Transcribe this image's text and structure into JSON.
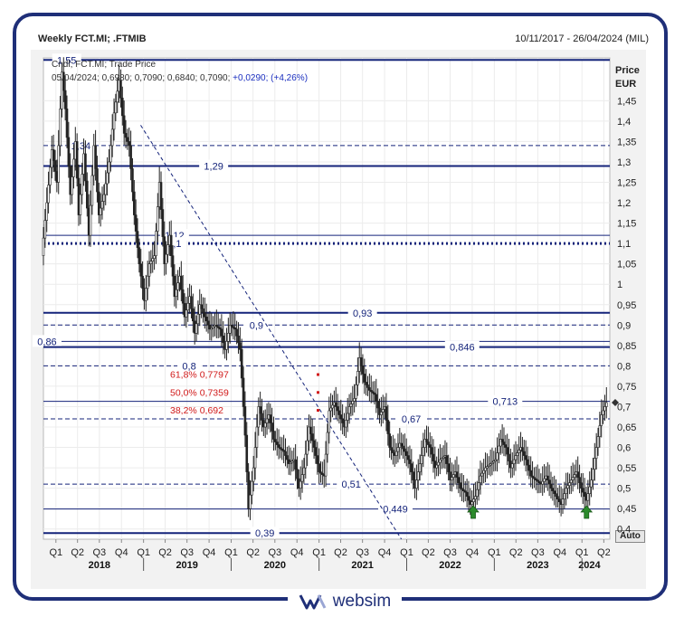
{
  "header": {
    "title": "Weekly FCT.MI; .FTMIB",
    "date_range": "10/11/2017 - 26/04/2024 (MIL)"
  },
  "info": {
    "line1": "Cndl; FCT.MI; Trade Price",
    "line2_prefix": "05/04/2024; 0,6980; 0,7090; 0,6840; 0,7090;",
    "line2_change": " +0,0290; (+4,26%)"
  },
  "axis": {
    "y_title": "Price",
    "y_unit": "EUR",
    "auto_label": "Auto"
  },
  "brand": {
    "name": "websim"
  },
  "chart_data": {
    "type": "candlestick",
    "ylim": [
      0.375,
      1.555
    ],
    "x_range": [
      "2017-11-10",
      "2024-04-26"
    ],
    "y_ticks": [
      "0,4",
      "0,45",
      "0,5",
      "0,55",
      "0,6",
      "0,65",
      "0,7",
      "0,75",
      "0,8",
      "0,85",
      "0,9",
      "0,95",
      "1",
      "1,05",
      "1,1",
      "1,15",
      "1,2",
      "1,25",
      "1,3",
      "1,35",
      "1,4",
      "1,45"
    ],
    "y_tick_values": [
      0.4,
      0.45,
      0.5,
      0.55,
      0.6,
      0.65,
      0.7,
      0.75,
      0.8,
      0.85,
      0.9,
      0.95,
      1.0,
      1.05,
      1.1,
      1.15,
      1.2,
      1.25,
      1.3,
      1.35,
      1.4,
      1.45
    ],
    "last_value_label": "0,7",
    "quarters": [
      {
        "label": "Q1",
        "date": "2018-01-01"
      },
      {
        "label": "Q2",
        "date": "2018-04-01"
      },
      {
        "label": "Q3",
        "date": "2018-07-01"
      },
      {
        "label": "Q4",
        "date": "2018-10-01"
      },
      {
        "label": "Q1",
        "date": "2019-01-01"
      },
      {
        "label": "Q2",
        "date": "2019-04-01"
      },
      {
        "label": "Q3",
        "date": "2019-07-01"
      },
      {
        "label": "Q4",
        "date": "2019-10-01"
      },
      {
        "label": "Q1",
        "date": "2020-01-01"
      },
      {
        "label": "Q2",
        "date": "2020-04-01"
      },
      {
        "label": "Q3",
        "date": "2020-07-01"
      },
      {
        "label": "Q4",
        "date": "2020-10-01"
      },
      {
        "label": "Q1",
        "date": "2021-01-01"
      },
      {
        "label": "Q2",
        "date": "2021-04-01"
      },
      {
        "label": "Q3",
        "date": "2021-07-01"
      },
      {
        "label": "Q4",
        "date": "2021-10-01"
      },
      {
        "label": "Q1",
        "date": "2022-01-01"
      },
      {
        "label": "Q2",
        "date": "2022-04-01"
      },
      {
        "label": "Q3",
        "date": "2022-07-01"
      },
      {
        "label": "Q4",
        "date": "2022-10-01"
      },
      {
        "label": "Q1",
        "date": "2023-01-01"
      },
      {
        "label": "Q2",
        "date": "2023-04-01"
      },
      {
        "label": "Q3",
        "date": "2023-07-01"
      },
      {
        "label": "Q4",
        "date": "2023-10-01"
      },
      {
        "label": "Q1",
        "date": "2024-01-01"
      },
      {
        "label": "Q2",
        "date": "2024-04-01"
      }
    ],
    "years": [
      {
        "label": "2018",
        "date": "2018-07-01"
      },
      {
        "label": "2019",
        "date": "2019-07-01"
      },
      {
        "label": "2020",
        "date": "2020-07-01"
      },
      {
        "label": "2021",
        "date": "2021-07-01"
      },
      {
        "label": "2022",
        "date": "2022-07-01"
      },
      {
        "label": "2023",
        "date": "2023-07-01"
      },
      {
        "label": "2024",
        "date": "2024-02-01"
      }
    ],
    "hlines": [
      {
        "value": 1.55,
        "label": "1,55",
        "style": "solid",
        "label_date": "2018-02-15"
      },
      {
        "value": 1.34,
        "label": "1,34",
        "style": "dashed",
        "label_date": "2018-04-15"
      },
      {
        "value": 1.29,
        "label": "1,29",
        "style": "solid",
        "label_date": "2019-10-20"
      },
      {
        "value": 1.12,
        "label": "1,12",
        "style": "thin",
        "label_date": "2019-05-10"
      },
      {
        "value": 1.1,
        "label": "1,1",
        "style": "dotted",
        "label_date": "2019-05-10"
      },
      {
        "value": 0.93,
        "label": "0,93",
        "style": "solid",
        "label_date": "2021-07-01"
      },
      {
        "value": 0.9,
        "label": "0,9",
        "style": "dashed",
        "label_date": "2020-04-15"
      },
      {
        "value": 0.86,
        "label": "0,86",
        "style": "thin",
        "label_date": "2017-11-25"
      },
      {
        "value": 0.846,
        "label": "0,846",
        "style": "solid",
        "label_date": "2022-08-20"
      },
      {
        "value": 0.8,
        "label": "0,8",
        "style": "dashed",
        "label_date": "2019-07-10"
      },
      {
        "value": 0.713,
        "label": "0,713",
        "style": "thin",
        "label_date": "2023-02-15"
      },
      {
        "value": 0.67,
        "label": "0,67",
        "style": "dashed",
        "label_date": "2022-01-20"
      },
      {
        "value": 0.51,
        "label": "0,51",
        "style": "dashed",
        "label_date": "2021-05-15"
      },
      {
        "value": 0.449,
        "label": "0,449",
        "style": "thin",
        "label_date": "2021-11-15"
      },
      {
        "value": 0.39,
        "label": "0,39",
        "style": "solid",
        "label_date": "2020-05-20"
      }
    ],
    "fib_levels": [
      {
        "label": "61,8%  0,7797",
        "value": 0.7797
      },
      {
        "label": "50,0%  0,7359",
        "value": 0.7359
      },
      {
        "label": "38,2%  0,692",
        "value": 0.692
      }
    ],
    "trendline": [
      {
        "date": "2018-12-20",
        "value": 1.39
      },
      {
        "date": "2021-12-10",
        "value": 0.375
      }
    ],
    "arrows": [
      {
        "date": "2022-10-05",
        "value": 0.455
      },
      {
        "date": "2024-01-20",
        "value": 0.455
      }
    ],
    "series": [
      {
        "values": [
          [
            [
              "2017-11-10",
              1.07
            ],
            [
              "2017-12-01",
              1.2
            ],
            [
              "2017-12-22",
              1.33
            ],
            [
              "2018-01-12",
              1.25
            ],
            [
              "2018-02-02",
              1.52
            ],
            [
              "2018-02-16",
              1.43
            ],
            [
              "2018-03-09",
              1.22
            ],
            [
              "2018-03-30",
              1.35
            ],
            [
              "2018-04-13",
              1.17
            ],
            [
              "2018-05-04",
              1.32
            ],
            [
              "2018-05-25",
              1.12
            ],
            [
              "2018-06-15",
              1.34
            ],
            [
              "2018-07-06",
              1.17
            ],
            [
              "2018-07-27",
              1.22
            ],
            [
              "2018-08-17",
              1.3
            ],
            [
              "2018-09-07",
              1.42
            ],
            [
              "2018-09-28",
              1.5
            ],
            [
              "2018-10-19",
              1.37
            ],
            [
              "2018-11-09",
              1.34
            ],
            [
              "2018-11-30",
              1.17
            ],
            [
              "2018-12-21",
              1.05
            ],
            [
              "2019-01-11",
              0.96
            ],
            [
              "2019-02-01",
              1.05
            ],
            [
              "2019-02-22",
              1.07
            ],
            [
              "2019-03-15",
              1.25
            ],
            [
              "2019-04-05",
              1.05
            ],
            [
              "2019-04-26",
              1.12
            ],
            [
              "2019-05-17",
              0.97
            ],
            [
              "2019-06-07",
              1.02
            ],
            [
              "2019-06-28",
              0.92
            ],
            [
              "2019-07-19",
              0.97
            ],
            [
              "2019-08-09",
              0.88
            ],
            [
              "2019-08-30",
              0.95
            ],
            [
              "2019-09-20",
              0.92
            ],
            [
              "2019-10-11",
              0.89
            ],
            [
              "2019-11-01",
              0.9
            ],
            [
              "2019-11-22",
              0.89
            ],
            [
              "2019-12-13",
              0.84
            ],
            [
              "2020-01-03",
              0.9
            ],
            [
              "2020-01-24",
              0.89
            ],
            [
              "2020-02-14",
              0.84
            ],
            [
              "2020-03-06",
              0.63
            ],
            [
              "2020-03-20",
              0.45
            ],
            [
              "2020-04-10",
              0.55
            ],
            [
              "2020-05-01",
              0.7
            ],
            [
              "2020-05-22",
              0.65
            ],
            [
              "2020-06-12",
              0.68
            ],
            [
              "2020-07-03",
              0.62
            ],
            [
              "2020-07-24",
              0.6
            ],
            [
              "2020-08-14",
              0.59
            ],
            [
              "2020-09-04",
              0.56
            ],
            [
              "2020-09-25",
              0.57
            ],
            [
              "2020-10-16",
              0.5
            ],
            [
              "2020-11-06",
              0.55
            ],
            [
              "2020-11-27",
              0.65
            ],
            [
              "2020-12-18",
              0.6
            ],
            [
              "2021-01-08",
              0.54
            ],
            [
              "2021-01-29",
              0.53
            ],
            [
              "2021-02-19",
              0.69
            ],
            [
              "2021-03-12",
              0.71
            ],
            [
              "2021-04-02",
              0.68
            ],
            [
              "2021-04-23",
              0.65
            ],
            [
              "2021-05-14",
              0.7
            ],
            [
              "2021-06-04",
              0.72
            ],
            [
              "2021-06-25",
              0.82
            ],
            [
              "2021-07-16",
              0.76
            ],
            [
              "2021-08-06",
              0.74
            ],
            [
              "2021-08-27",
              0.73
            ],
            [
              "2021-09-17",
              0.68
            ],
            [
              "2021-10-08",
              0.7
            ],
            [
              "2021-10-29",
              0.6
            ],
            [
              "2021-11-19",
              0.58
            ],
            [
              "2021-12-10",
              0.61
            ],
            [
              "2021-12-31",
              0.59
            ],
            [
              "2022-01-21",
              0.56
            ],
            [
              "2022-02-11",
              0.5
            ],
            [
              "2022-03-04",
              0.56
            ],
            [
              "2022-03-25",
              0.62
            ],
            [
              "2022-04-15",
              0.6
            ],
            [
              "2022-05-06",
              0.55
            ],
            [
              "2022-05-27",
              0.57
            ],
            [
              "2022-06-17",
              0.58
            ],
            [
              "2022-07-08",
              0.52
            ],
            [
              "2022-07-29",
              0.54
            ],
            [
              "2022-08-19",
              0.5
            ],
            [
              "2022-09-09",
              0.49
            ],
            [
              "2022-09-30",
              0.46
            ],
            [
              "2022-10-21",
              0.48
            ],
            [
              "2022-11-11",
              0.53
            ],
            [
              "2022-12-02",
              0.55
            ],
            [
              "2022-12-23",
              0.56
            ],
            [
              "2023-01-13",
              0.57
            ],
            [
              "2023-02-03",
              0.62
            ],
            [
              "2023-02-24",
              0.6
            ],
            [
              "2023-03-17",
              0.55
            ],
            [
              "2023-04-07",
              0.58
            ],
            [
              "2023-04-28",
              0.6
            ],
            [
              "2023-05-19",
              0.57
            ],
            [
              "2023-06-09",
              0.53
            ],
            [
              "2023-06-30",
              0.52
            ],
            [
              "2023-07-21",
              0.51
            ],
            [
              "2023-08-11",
              0.53
            ],
            [
              "2023-09-01",
              0.5
            ],
            [
              "2023-09-22",
              0.48
            ],
            [
              "2023-10-13",
              0.46
            ],
            [
              "2023-11-03",
              0.5
            ],
            [
              "2023-11-24",
              0.52
            ],
            [
              "2023-12-15",
              0.54
            ],
            [
              "2024-01-05",
              0.5
            ],
            [
              "2024-01-26",
              0.47
            ],
            [
              "2024-02-16",
              0.52
            ],
            [
              "2024-03-08",
              0.6
            ],
            [
              "2024-03-29",
              0.68
            ],
            [
              "2024-04-19",
              0.71
            ]
          ]
        ]
      }
    ]
  }
}
